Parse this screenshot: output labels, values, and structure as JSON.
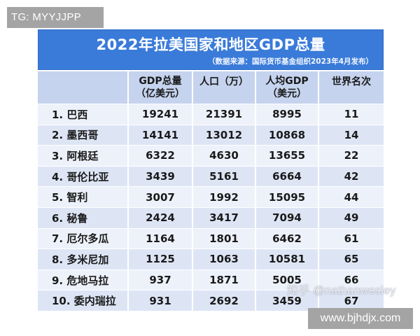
{
  "overlay": {
    "tg_label": "TG: MYYJJPP",
    "site_label": "www.bjhdjx.com",
    "watermark": "知乎 @nathanwesley"
  },
  "header": {
    "title": "2022年拉美国家和地区GDP总量",
    "subtitle": "（数据来源：国际货币基金组织2023年4月发布）"
  },
  "colors": {
    "title_band": "#3a7bd9",
    "header_row": "#c5d3ee",
    "row_light": "#edf1fa",
    "row_dark": "#dde5f5"
  },
  "table": {
    "columns": [
      {
        "line1": "",
        "line2": ""
      },
      {
        "line1": "GDP总量",
        "line2": "（亿美元）"
      },
      {
        "line1": "人口（万）",
        "line2": ""
      },
      {
        "line1": "人均GDP",
        "line2": "（美元）"
      },
      {
        "line1": "世界名次",
        "line2": ""
      }
    ],
    "rows": [
      {
        "country": "1. 巴西",
        "gdp": "19241",
        "population": "21391",
        "gdp_per_capita": "8995",
        "world_rank": "11"
      },
      {
        "country": "2. 墨西哥",
        "gdp": "14141",
        "population": "13012",
        "gdp_per_capita": "10868",
        "world_rank": "14"
      },
      {
        "country": "3. 阿根廷",
        "gdp": "6322",
        "population": "4630",
        "gdp_per_capita": "13655",
        "world_rank": "22"
      },
      {
        "country": "4. 哥伦比亚",
        "gdp": "3439",
        "population": "5161",
        "gdp_per_capita": "6664",
        "world_rank": "42"
      },
      {
        "country": "5. 智利",
        "gdp": "3007",
        "population": "1992",
        "gdp_per_capita": "15095",
        "world_rank": "44"
      },
      {
        "country": "6. 秘鲁",
        "gdp": "2424",
        "population": "3417",
        "gdp_per_capita": "7094",
        "world_rank": "49"
      },
      {
        "country": "7. 厄尔多瓜",
        "gdp": "1164",
        "population": "1801",
        "gdp_per_capita": "6462",
        "world_rank": "61"
      },
      {
        "country": "8. 多米尼加",
        "gdp": "1125",
        "population": "1063",
        "gdp_per_capita": "10581",
        "world_rank": "65"
      },
      {
        "country": "9. 危地马拉",
        "gdp": "937",
        "population": "1871",
        "gdp_per_capita": "5005",
        "world_rank": "66"
      },
      {
        "country": "10. 委内瑞拉",
        "gdp": "931",
        "population": "2692",
        "gdp_per_capita": "3459",
        "world_rank": "67"
      }
    ]
  }
}
